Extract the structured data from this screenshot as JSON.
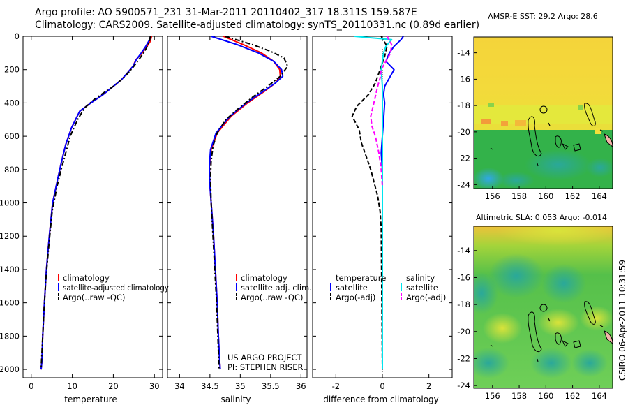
{
  "header": {
    "line1": "Argo profile: AO 5900571_231 31-Mar-2011 20110402_317 18.311S 159.587E",
    "line2": "Climatology: CARS2009. Satellite-adjusted climatology: synTS_20110331.nc (0.89d earlier)"
  },
  "chart_data": [
    {
      "type": "line",
      "xlabel": "temperature",
      "xlim": [
        -2,
        32
      ],
      "ylim": [
        0,
        2050
      ],
      "y_reversed": true,
      "xticks": [
        0,
        10,
        20,
        30
      ],
      "yticks": [
        0,
        200,
        400,
        600,
        800,
        1000,
        1200,
        1400,
        1600,
        1800,
        2000
      ],
      "legend": [
        "climatology",
        "satellite-adjusted climatology",
        "Argo(..raw -QC)"
      ],
      "series": [
        {
          "name": "climatology",
          "color": "#ff0000",
          "dash": "solid",
          "x": [
            29.3,
            29.0,
            28.2,
            27.0,
            25.5,
            24.8,
            23.4,
            22.0,
            20.0,
            17.5,
            14.5,
            11.8,
            9.8,
            8.4,
            7.4,
            6.5,
            5.2,
            4.4,
            3.7,
            3.2,
            2.8,
            2.6,
            2.4
          ],
          "y": [
            0,
            30,
            60,
            100,
            140,
            180,
            220,
            260,
            300,
            350,
            400,
            450,
            550,
            650,
            750,
            850,
            1000,
            1200,
            1400,
            1600,
            1800,
            1950,
            2000
          ]
        },
        {
          "name": "satellite-adjusted climatology",
          "color": "#0000ff",
          "dash": "solid",
          "x": [
            29.1,
            28.6,
            27.9,
            26.8,
            25.6,
            24.8,
            23.4,
            22.0,
            20.0,
            17.5,
            14.5,
            11.8,
            9.8,
            8.4,
            7.4,
            6.5,
            5.2,
            4.4,
            3.7,
            3.2,
            2.8,
            2.6,
            2.4
          ],
          "y": [
            0,
            30,
            60,
            100,
            140,
            180,
            220,
            260,
            300,
            350,
            400,
            450,
            550,
            650,
            750,
            850,
            1000,
            1200,
            1400,
            1600,
            1800,
            1950,
            2000
          ]
        },
        {
          "name": "Argo(..raw -QC)",
          "color": "#000000",
          "dash": "dashdot",
          "x": [
            29.0,
            28.8,
            28.3,
            27.4,
            26.2,
            25.0,
            23.6,
            22.0,
            20.0,
            17.6,
            15.3,
            13.0,
            11.3,
            9.5,
            8.4,
            7.3,
            6.3,
            5.1,
            4.3,
            3.6,
            3.1,
            2.7,
            2.4
          ],
          "y": [
            0,
            30,
            60,
            100,
            140,
            180,
            220,
            260,
            300,
            340,
            380,
            430,
            500,
            600,
            700,
            800,
            900,
            1050,
            1250,
            1450,
            1650,
            1850,
            2000
          ]
        }
      ]
    },
    {
      "type": "line",
      "xlabel": "salinity",
      "xlim": [
        33.8,
        36.1
      ],
      "ylim": [
        0,
        2050
      ],
      "y_reversed": true,
      "xticks": [
        34,
        34.5,
        35,
        35.5,
        36
      ],
      "legend": [
        "climatology",
        "satellite adj. clim.",
        "Argo(..raw -QC)"
      ],
      "annotation": [
        "US ARGO PROJECT",
        "PI: STEPHEN RISER"
      ],
      "series": [
        {
          "name": "climatology",
          "color": "#ff0000",
          "dash": "solid",
          "x": [
            34.72,
            35.05,
            35.35,
            35.55,
            35.65,
            35.66,
            35.58,
            35.4,
            35.12,
            34.85,
            34.62,
            34.52,
            34.49,
            34.5,
            34.53,
            34.56,
            34.59,
            34.62,
            34.64,
            34.66,
            34.67
          ],
          "y": [
            0,
            50,
            100,
            150,
            200,
            240,
            280,
            330,
            400,
            480,
            580,
            680,
            780,
            900,
            1050,
            1200,
            1400,
            1600,
            1800,
            1950,
            2000
          ]
        },
        {
          "name": "satellite adj. clim.",
          "color": "#0000ff",
          "dash": "solid",
          "x": [
            34.52,
            34.95,
            35.3,
            35.55,
            35.68,
            35.7,
            35.58,
            35.38,
            35.1,
            34.83,
            34.6,
            34.51,
            34.49,
            34.5,
            34.53,
            34.56,
            34.59,
            34.62,
            34.64,
            34.66,
            34.67
          ],
          "y": [
            0,
            50,
            100,
            150,
            200,
            240,
            280,
            330,
            400,
            480,
            580,
            680,
            780,
            900,
            1050,
            1200,
            1400,
            1600,
            1800,
            1950,
            2000
          ]
        },
        {
          "name": "Argo(..raw -QC)",
          "color": "#000000",
          "dash": "dashdot",
          "x": [
            34.75,
            35.2,
            35.5,
            35.72,
            35.78,
            35.66,
            35.45,
            35.22,
            34.98,
            34.76,
            34.62,
            34.55,
            34.52,
            34.51,
            34.52,
            34.55,
            34.58,
            34.61,
            34.63,
            34.65
          ],
          "y": [
            0,
            50,
            90,
            130,
            180,
            240,
            300,
            360,
            430,
            500,
            580,
            660,
            750,
            850,
            1000,
            1200,
            1400,
            1600,
            1800,
            2000
          ]
        }
      ]
    },
    {
      "type": "line",
      "xlabel": "difference from climatology",
      "xlim": [
        -3,
        3
      ],
      "ylim": [
        0,
        2050
      ],
      "y_reversed": true,
      "xticks": [
        -2,
        0,
        2
      ],
      "legend_titles": [
        "temperature",
        "salinity"
      ],
      "legend": [
        "satellite",
        "Argo(-adj)",
        "satellite",
        "Argo(-adj)"
      ],
      "series": [
        {
          "name": "temperature satellite",
          "color": "#0000ff",
          "dash": "solid",
          "x": [
            0.9,
            0.8,
            0.5,
            0.3,
            0.15,
            0.5,
            0.3,
            0.1,
            0.05,
            0.1,
            0.05,
            0.0,
            -0.05,
            0.0,
            0.0,
            0.0,
            0.0,
            0.0,
            0.0
          ],
          "y": [
            0,
            20,
            60,
            100,
            150,
            200,
            250,
            300,
            350,
            400,
            500,
            600,
            700,
            800,
            900,
            1200,
            1500,
            1800,
            2000
          ]
        },
        {
          "name": "temperature Argo(-adj)",
          "color": "#000000",
          "dash": "dash",
          "x": [
            -0.05,
            0.2,
            0.1,
            -0.1,
            -0.3,
            -0.6,
            -1.1,
            -1.3,
            -1.0,
            -0.9,
            -0.7,
            -0.5,
            -0.35,
            -0.2,
            -0.1,
            -0.05,
            0.0
          ],
          "y": [
            0,
            60,
            120,
            200,
            280,
            350,
            420,
            480,
            560,
            640,
            720,
            800,
            880,
            960,
            1050,
            1150,
            2000
          ]
        },
        {
          "name": "salinity satellite",
          "color": "#00e5ee",
          "dash": "solid",
          "x": [
            -1.2,
            0.4,
            0.15,
            0.05,
            0.0,
            -0.05,
            0.0,
            0.0,
            0.0,
            0.0,
            0.0,
            0.0
          ],
          "y": [
            0,
            20,
            60,
            100,
            150,
            200,
            300,
            500,
            800,
            1200,
            1600,
            2000
          ]
        },
        {
          "name": "salinity Argo(-adj)",
          "color": "#ff00ff",
          "dash": "dash",
          "x": [
            0.2,
            0.4,
            0.35,
            0.15,
            -0.05,
            -0.1,
            -0.2,
            -0.3,
            -0.4,
            -0.5,
            -0.45,
            -0.3,
            -0.15,
            -0.05,
            0.0
          ],
          "y": [
            0,
            50,
            100,
            150,
            200,
            250,
            300,
            360,
            420,
            480,
            540,
            600,
            700,
            800,
            900
          ]
        }
      ]
    }
  ],
  "maps": [
    {
      "title": "AMSR-E SST: 29.2 Argo: 28.6",
      "xticks": [
        156,
        158,
        160,
        162,
        164
      ],
      "yticks": [
        -14,
        -16,
        -18,
        -20,
        -22,
        -24
      ]
    },
    {
      "title": "Altimetric SLA: 0.053 Argo: -0.014",
      "xticks": [
        156,
        158,
        160,
        162,
        164
      ],
      "yticks": [
        -14,
        -16,
        -18,
        -20,
        -22,
        -24
      ]
    }
  ],
  "signature": "CSIRO 06-Apr-2011 10:31:59"
}
